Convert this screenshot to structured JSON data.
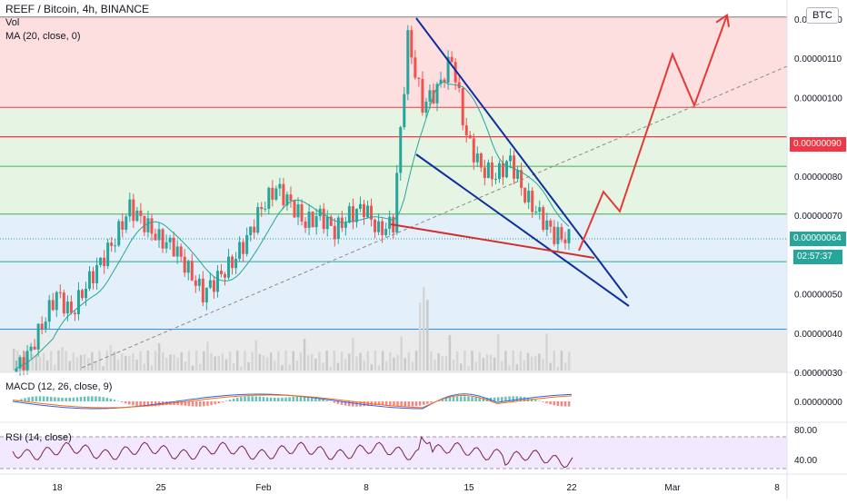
{
  "header": {
    "title": "REEF / Bitcoin, 4h, BINANCE",
    "vol_label": "Vol",
    "ma_label": "MA (20, close, 0)",
    "currency_badge": "BTC"
  },
  "indicators": {
    "macd_label": "MACD (12, 26, close, 9)",
    "rsi_label": "RSI (14, close)"
  },
  "price_tags": {
    "red_level": "0.00000090",
    "current_price": "0.00000064",
    "countdown": "02:57:37"
  },
  "colors": {
    "accent_red": "#f23645",
    "current_green": "#26a69a",
    "trend_blue": "#0d2fa0",
    "fib_red_zone": "#fcd7d7",
    "fib_green_zone": "#dff1dc",
    "fib_blue_zone": "#dcecf8",
    "fib_gray_zone": "#e6e6e6"
  },
  "chart_data": [
    {
      "type": "line",
      "title": "REEF / Bitcoin, 4h, BINANCE",
      "currency": "BTC",
      "x_ticks": [
        "18",
        "25",
        "Feb",
        "8",
        "15",
        "22",
        "Mar",
        "8"
      ],
      "y_ticks": [
        "0.00000120",
        "0.00000110",
        "0.00000100",
        "0.00000090",
        "0.00000080",
        "0.00000070",
        "0.00000064",
        "0.00000050",
        "0.00000040",
        "0.00000030"
      ],
      "ylim": [
        3e-07,
        1.23e-06
      ],
      "current_price": 6.4e-07,
      "highlighted_level": 9e-07,
      "fib_levels": [
        1.205e-06,
        9.75e-07,
        8.25e-07,
        7.03e-07,
        5.82e-07,
        4.1e-07
      ],
      "close_series_approx": [
        3e-07,
        3.4e-07,
        4.2e-07,
        5e-07,
        4.5e-07,
        5.2e-07,
        5.8e-07,
        6.4e-07,
        7.2e-07,
        6.8e-07,
        6.4e-07,
        6.2e-07,
        5.6e-07,
        5e-07,
        5.4e-07,
        5.8e-07,
        6.4e-07,
        7.2e-07,
        7.7e-07,
        7.3e-07,
        6.8e-07,
        7e-07,
        6.6e-07,
        7e-07,
        7.2e-07,
        6.6e-07,
        6.8e-07,
        1.15e-06,
        9.8e-07,
        1.02e-06,
        1.1e-06,
        9e-07,
        8.2e-07,
        8e-07,
        8.4e-07,
        7.5e-07,
        7e-07,
        6.5e-07,
        6.4e-07
      ],
      "projection": [
        6.1e-07,
        7.6e-07,
        7.1e-07,
        1.11e-06,
        9.8e-07,
        1.21e-06
      ],
      "series": [
        {
          "name": "MA (20, close, 0)"
        }
      ]
    },
    {
      "type": "bar",
      "title": "MACD (12, 26, close, 9)",
      "y_ticks": [
        "0.00000000"
      ]
    },
    {
      "type": "line",
      "title": "RSI (14, close)",
      "y_ticks": [
        "80.00",
        "40.00"
      ],
      "ylim": [
        25,
        90
      ],
      "bands": [
        70,
        30
      ]
    }
  ]
}
